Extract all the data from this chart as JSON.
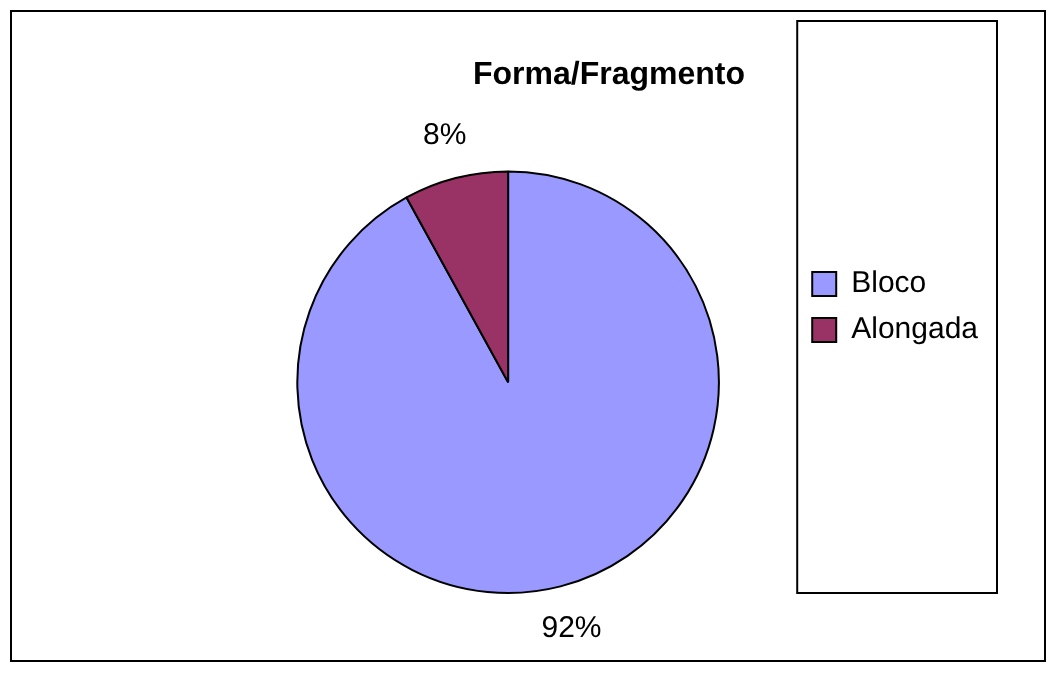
{
  "chart_data": {
    "type": "pie",
    "title": "Forma/Fragmento",
    "categories": [
      "Bloco",
      "Alongada"
    ],
    "values": [
      92,
      8
    ],
    "colors": [
      "#9999ff",
      "#993366"
    ],
    "value_labels": [
      "92%",
      "8%"
    ],
    "legend": "right"
  }
}
